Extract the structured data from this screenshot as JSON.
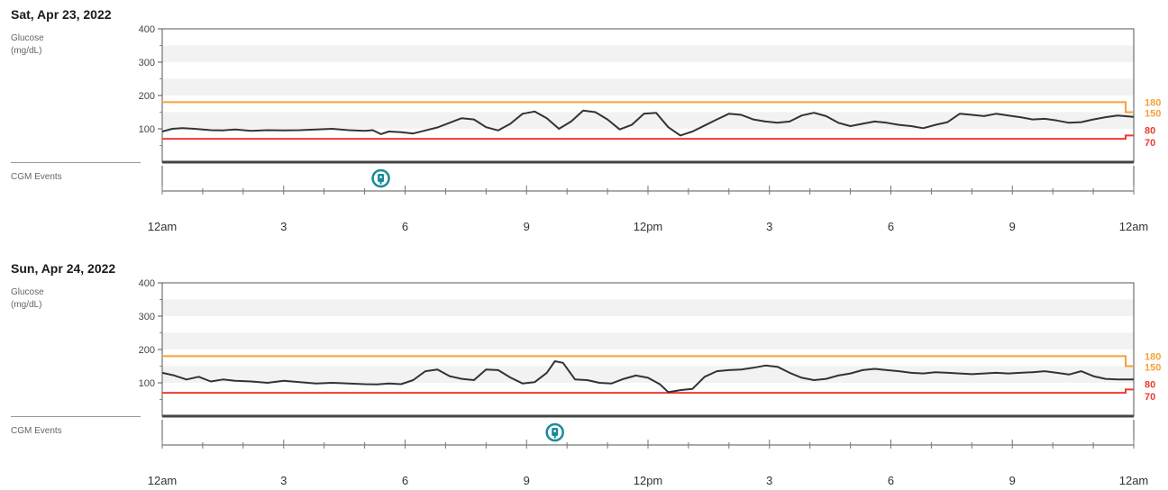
{
  "colors": {
    "glucose_line": "#333333",
    "high_threshold": "#f5a23a",
    "low_threshold": "#ef3b32",
    "event_icon": "#1a8a9a",
    "band": "#f2f2f2"
  },
  "labels": {
    "glucose": "Glucose",
    "units": "(mg/dL)",
    "cgm_events": "CGM Events"
  },
  "threshold_labels": [
    "180",
    "150",
    "80",
    "70"
  ],
  "chart_data": [
    {
      "type": "line",
      "title": "Sat, Apr 23, 2022",
      "ylabel": "Glucose (mg/dL)",
      "ylim": [
        0,
        400
      ],
      "yticks": [
        "100",
        "200",
        "300",
        "400"
      ],
      "xlim": [
        0,
        24
      ],
      "xticks": [
        "12am",
        "3",
        "6",
        "9",
        "12pm",
        "3",
        "6",
        "9",
        "12am"
      ],
      "high_threshold": {
        "value": 180,
        "end_value": 150
      },
      "low_threshold": {
        "value": 70,
        "end_value": 80
      },
      "cgm_events": [
        {
          "hour": 5.4,
          "icon": "cgm-event-icon"
        }
      ],
      "series": [
        {
          "x": [
            0,
            0.25,
            0.5,
            0.8,
            1.2,
            1.5,
            1.8,
            2.2,
            2.6,
            3.0,
            3.4,
            3.8,
            4.2,
            4.6,
            5.0,
            5.2,
            5.4,
            5.6,
            5.9,
            6.2,
            6.5,
            6.8,
            7.1,
            7.4,
            7.7,
            8.0,
            8.3,
            8.6,
            8.9,
            9.2,
            9.5,
            9.8,
            10.1,
            10.4,
            10.7,
            11.0,
            11.3,
            11.6,
            11.9,
            12.2,
            12.5,
            12.8,
            13.1,
            13.4,
            13.7,
            14.0,
            14.3,
            14.6,
            14.9,
            15.2,
            15.5,
            15.8,
            16.1,
            16.4,
            16.7,
            17.0,
            17.3,
            17.6,
            17.9,
            18.2,
            18.5,
            18.8,
            19.1,
            19.4,
            19.7,
            20.0,
            20.3,
            20.6,
            20.9,
            21.2,
            21.5,
            21.8,
            22.1,
            22.4,
            22.7,
            23.0,
            23.3,
            23.6,
            24.0
          ],
          "y": [
            92,
            100,
            102,
            100,
            96,
            95,
            98,
            94,
            96,
            95,
            96,
            98,
            100,
            96,
            94,
            96,
            84,
            92,
            90,
            86,
            95,
            104,
            118,
            132,
            128,
            105,
            95,
            115,
            145,
            152,
            132,
            100,
            122,
            155,
            150,
            128,
            98,
            112,
            145,
            148,
            105,
            80,
            92,
            110,
            128,
            145,
            142,
            128,
            122,
            118,
            122,
            140,
            148,
            138,
            118,
            108,
            115,
            122,
            118,
            112,
            108,
            102,
            112,
            120,
            145,
            142,
            138,
            145,
            140,
            135,
            128,
            130,
            125,
            118,
            120,
            128,
            135,
            140,
            136
          ]
        }
      ]
    },
    {
      "type": "line",
      "title": "Sun, Apr 24, 2022",
      "ylabel": "Glucose (mg/dL)",
      "ylim": [
        0,
        400
      ],
      "yticks": [
        "100",
        "200",
        "300",
        "400"
      ],
      "xlim": [
        0,
        24
      ],
      "xticks": [
        "12am",
        "3",
        "6",
        "9",
        "12pm",
        "3",
        "6",
        "9",
        "12am"
      ],
      "high_threshold": {
        "value": 180,
        "end_value": 150
      },
      "low_threshold": {
        "value": 70,
        "end_value": 80
      },
      "cgm_events": [
        {
          "hour": 9.7,
          "icon": "cgm-event-icon"
        }
      ],
      "series": [
        {
          "x": [
            0,
            0.3,
            0.6,
            0.9,
            1.2,
            1.5,
            1.8,
            2.2,
            2.6,
            3.0,
            3.4,
            3.8,
            4.2,
            4.6,
            5.0,
            5.3,
            5.6,
            5.9,
            6.2,
            6.5,
            6.8,
            7.1,
            7.4,
            7.7,
            8.0,
            8.3,
            8.6,
            8.9,
            9.2,
            9.5,
            9.7,
            9.9,
            10.2,
            10.5,
            10.8,
            11.1,
            11.4,
            11.7,
            12.0,
            12.3,
            12.5,
            12.8,
            13.1,
            13.4,
            13.7,
            14.0,
            14.3,
            14.6,
            14.9,
            15.2,
            15.5,
            15.8,
            16.1,
            16.4,
            16.7,
            17.0,
            17.3,
            17.6,
            17.9,
            18.2,
            18.5,
            18.8,
            19.1,
            19.4,
            19.7,
            20.0,
            20.3,
            20.6,
            20.9,
            21.2,
            21.5,
            21.8,
            22.1,
            22.4,
            22.7,
            23.0,
            23.3,
            23.6,
            24.0
          ],
          "y": [
            130,
            122,
            110,
            118,
            104,
            110,
            106,
            104,
            100,
            106,
            102,
            98,
            100,
            98,
            96,
            95,
            98,
            96,
            108,
            135,
            140,
            120,
            112,
            108,
            140,
            138,
            116,
            98,
            102,
            130,
            165,
            160,
            110,
            108,
            100,
            98,
            112,
            122,
            115,
            95,
            72,
            78,
            82,
            118,
            135,
            138,
            140,
            145,
            152,
            148,
            130,
            115,
            108,
            112,
            122,
            128,
            138,
            142,
            138,
            135,
            130,
            128,
            132,
            130,
            128,
            126,
            128,
            130,
            128,
            130,
            132,
            135,
            130,
            125,
            135,
            120,
            112,
            110,
            110
          ]
        }
      ]
    }
  ]
}
